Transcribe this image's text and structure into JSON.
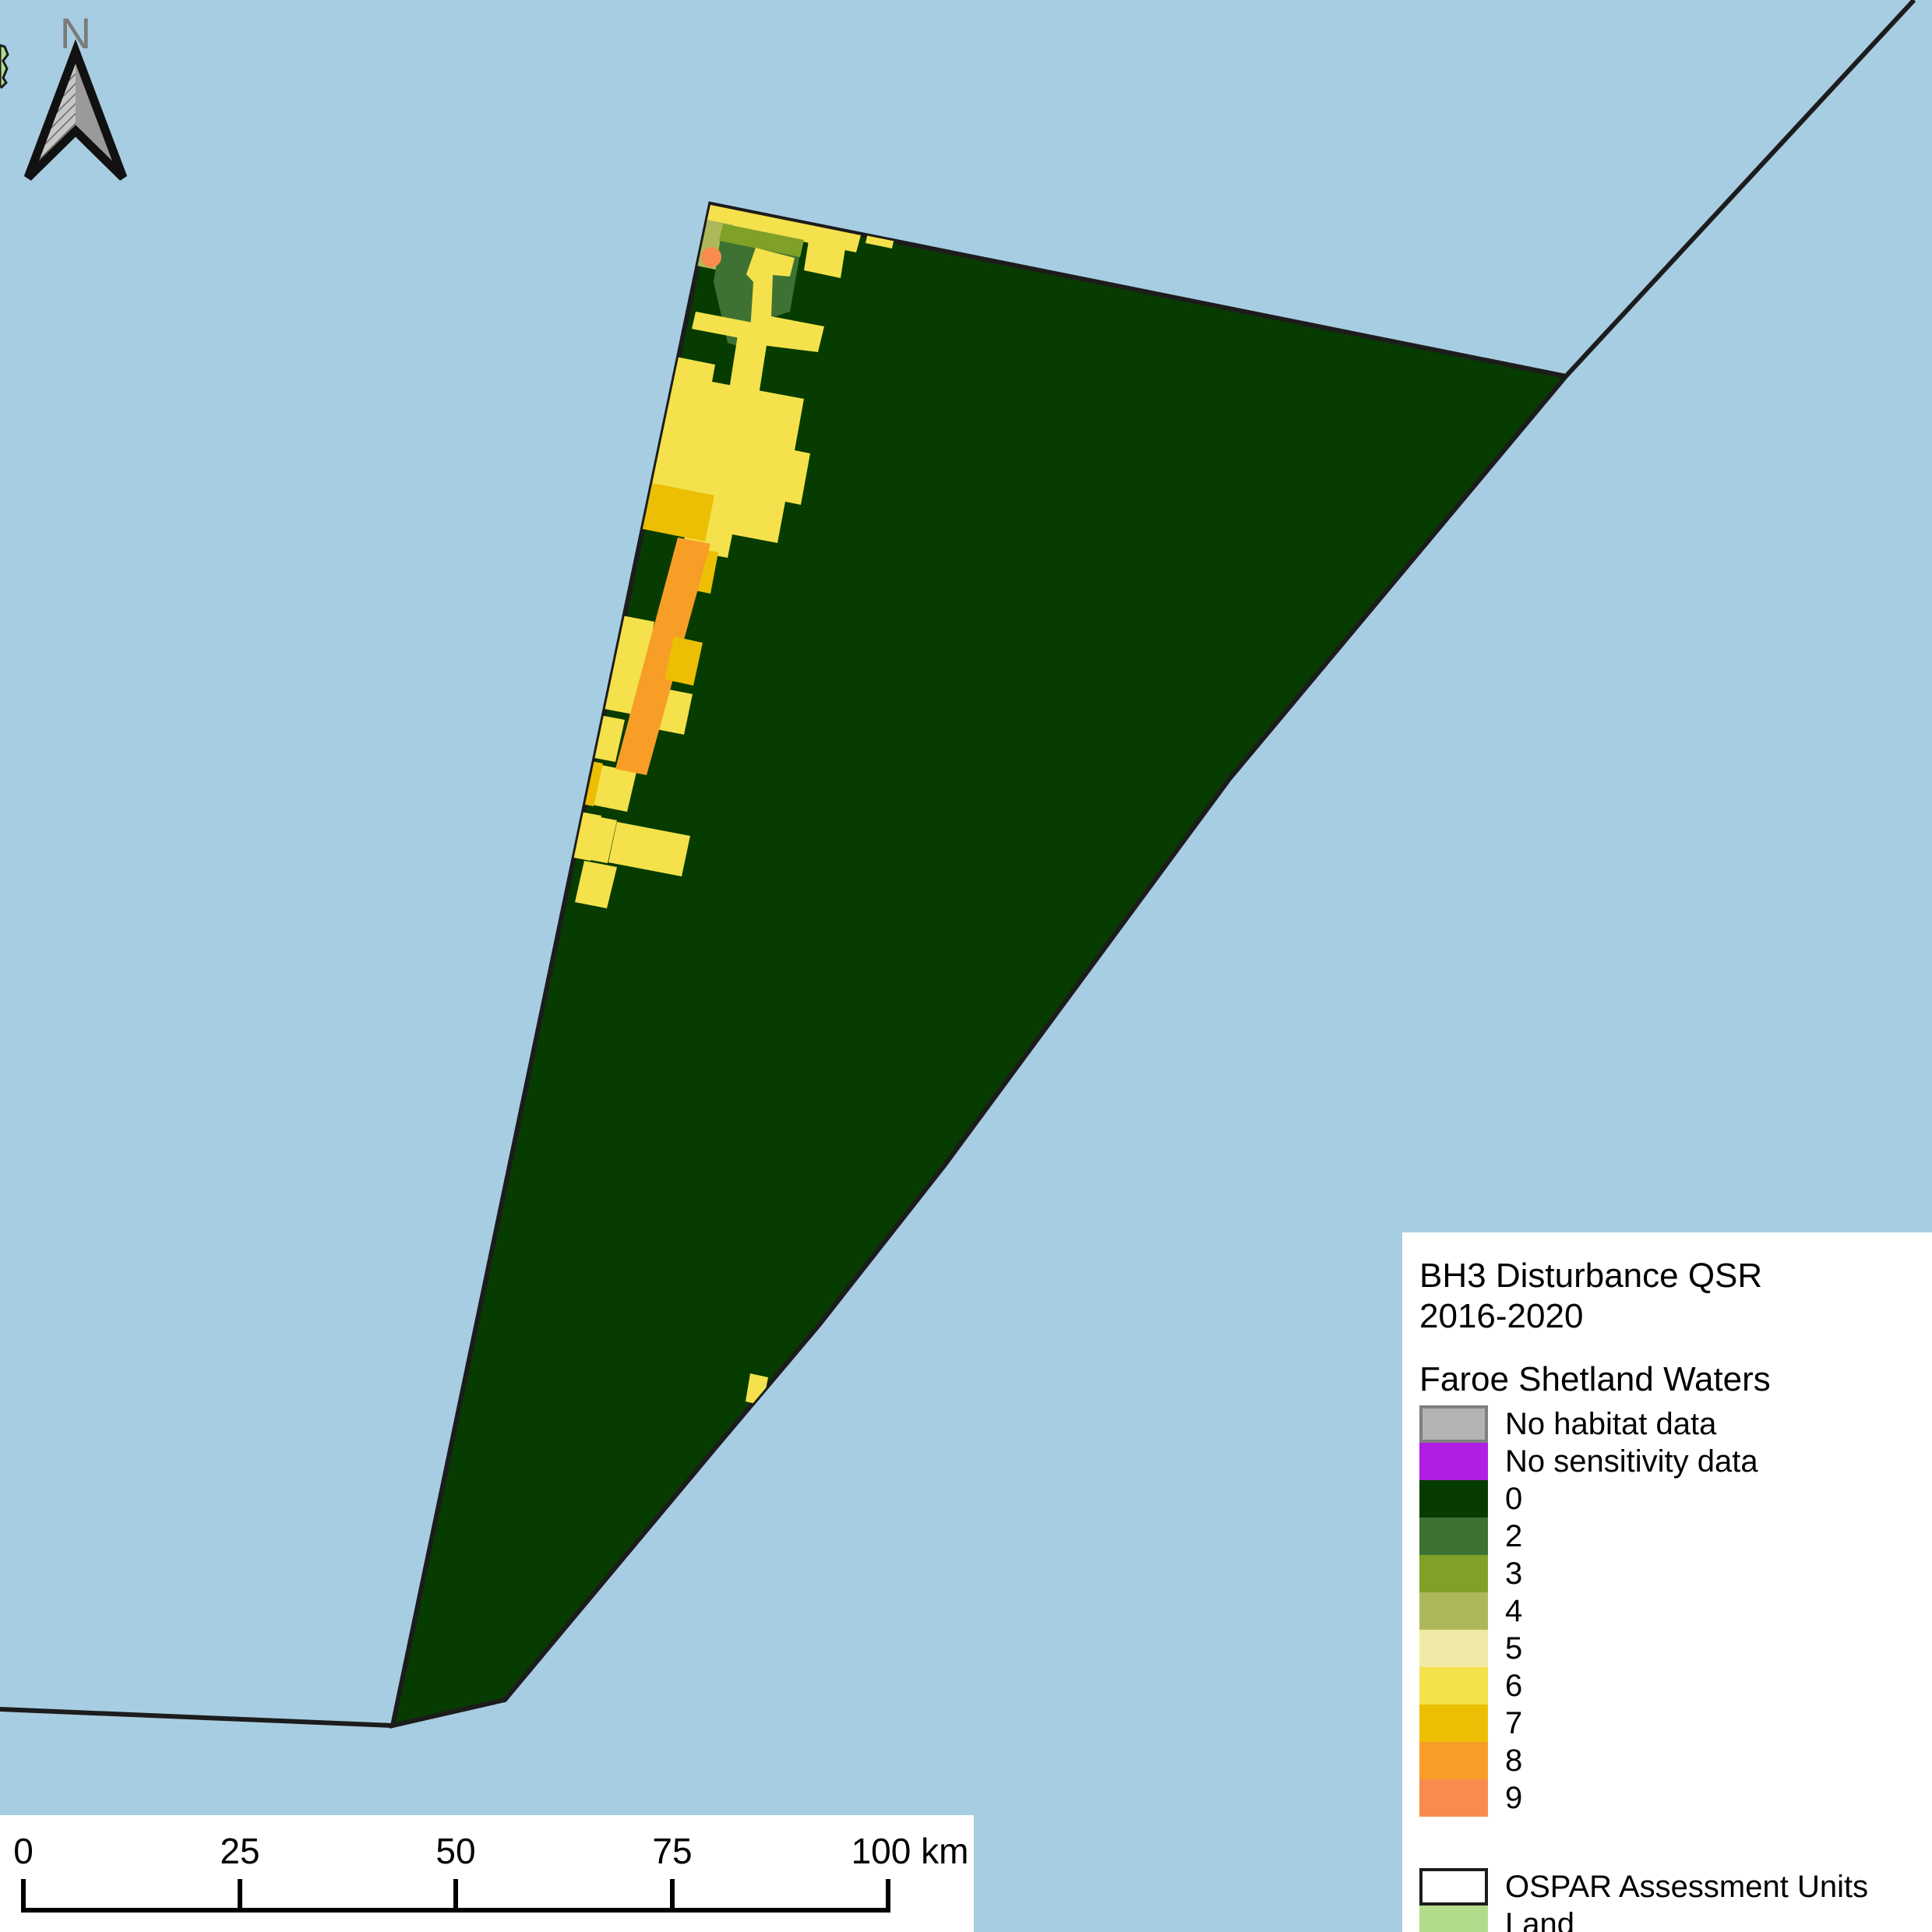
{
  "north_arrow": {
    "label": "N"
  },
  "scale_bar": {
    "tick_labels": [
      "0",
      "25",
      "50",
      "75",
      "100 km"
    ],
    "units": "km"
  },
  "legend": {
    "title_line1": "BH3 Disturbance QSR",
    "title_line2": "2016-2020",
    "subtitle": "Faroe Shetland Waters",
    "items": [
      {
        "label": "No habitat data",
        "color": "#b3b3b3",
        "border": "#7f7f7f"
      },
      {
        "label": "No sensitivity data",
        "color": "#b01ee6"
      },
      {
        "label": "0",
        "color": "#073c00"
      },
      {
        "label": "2",
        "color": "#3e7233"
      },
      {
        "label": "3",
        "color": "#7fa127"
      },
      {
        "label": "4",
        "color": "#aeb85a"
      },
      {
        "label": "5",
        "color": "#f1e9a6"
      },
      {
        "label": "6",
        "color": "#f4e14b"
      },
      {
        "label": "7",
        "color": "#ecbf05"
      },
      {
        "label": "8",
        "color": "#f89d26"
      },
      {
        "label": "9",
        "color": "#fa8b4f"
      }
    ],
    "overlay_items": [
      {
        "label": "OSPAR Assessment Units",
        "color": "#ffffff",
        "border": "#1c1c1c"
      },
      {
        "label": "Land",
        "color": "#b2dc8c"
      }
    ]
  },
  "colors": {
    "sea": "#a7cde2",
    "assessment_unit_fill": "#073c00",
    "boundary": "#1c1c1c",
    "land": "#b2dc8c",
    "north_letter": "#7b7b7b",
    "arrow_right_fill": "#9a9a9a",
    "arrow_hatch_bg": "#c6c6c6",
    "arrow_hatch_line": "#555555"
  }
}
